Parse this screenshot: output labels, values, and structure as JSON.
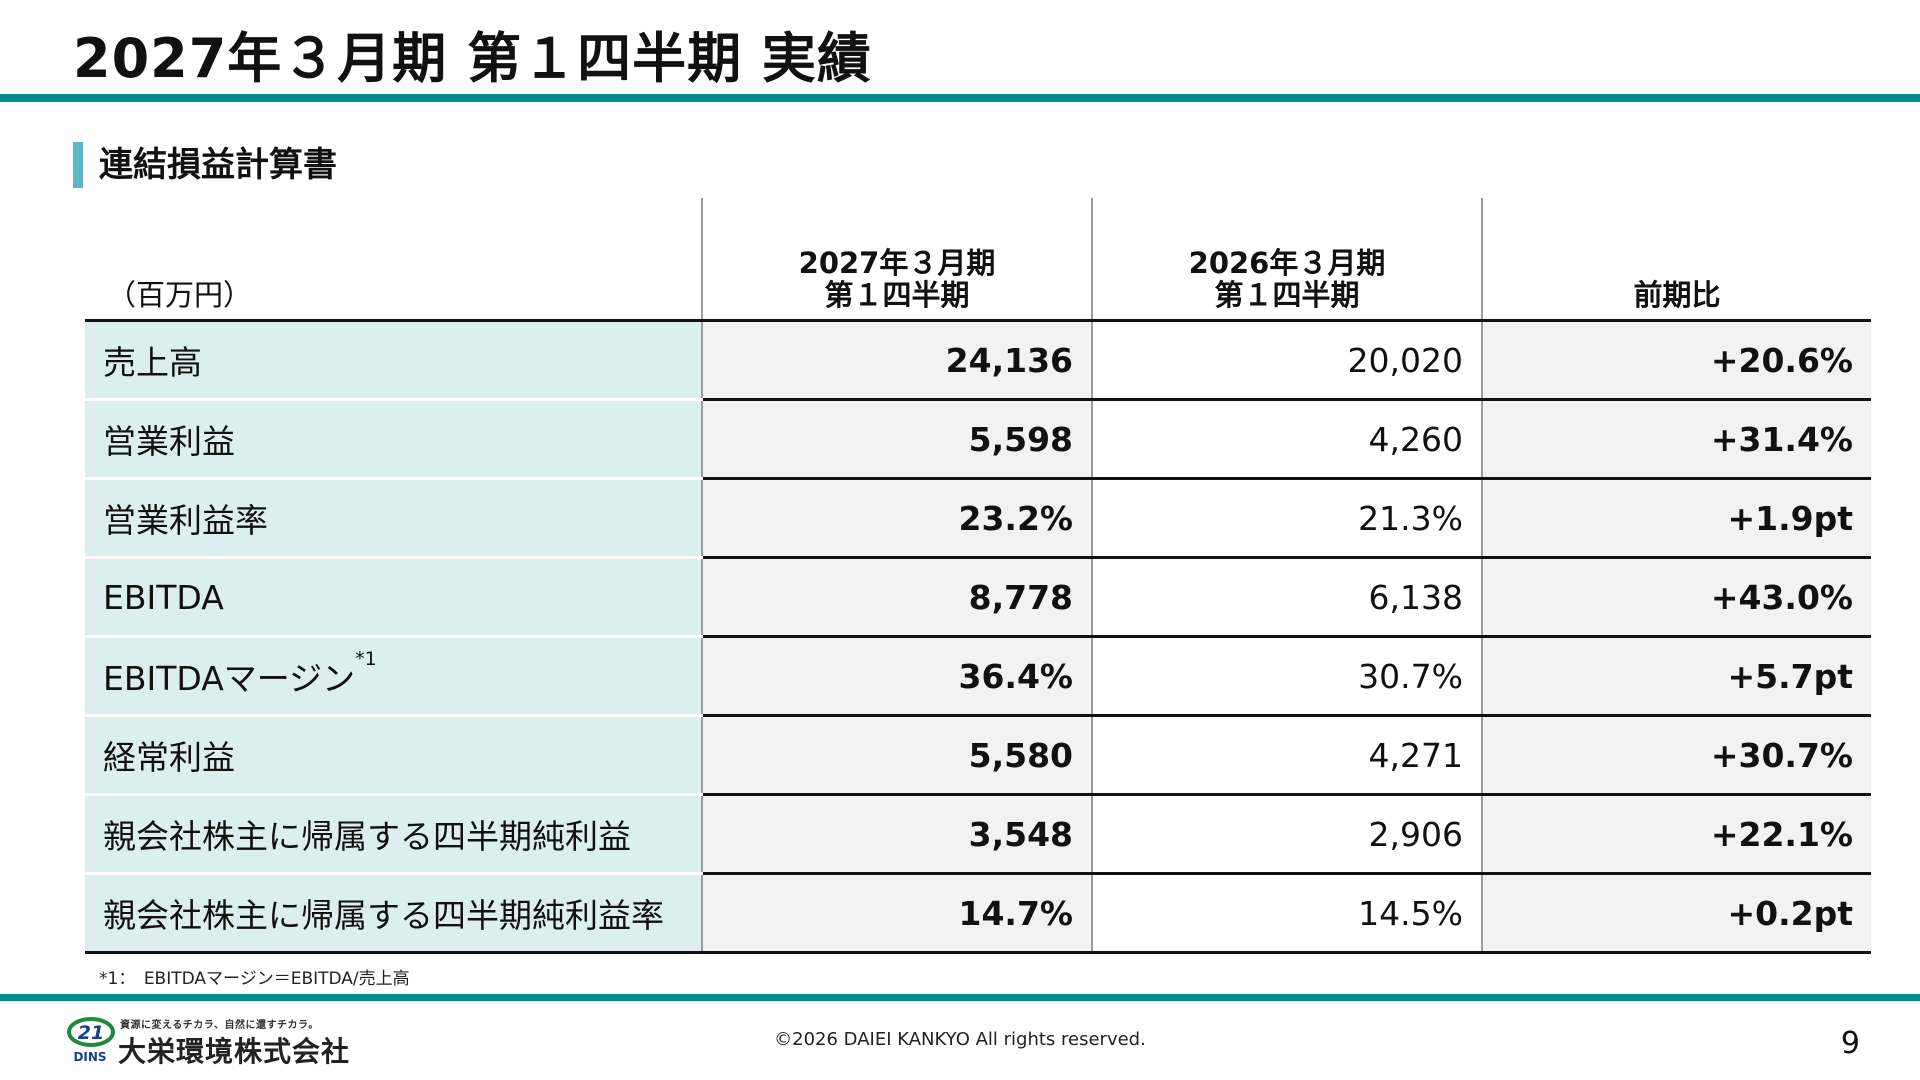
{
  "title": "2027年３月期 第１四半期 実績",
  "section_title": "連結損益計算書",
  "table": {
    "unit": "（百万円）",
    "headers": [
      {
        "line1": "2027年３月期",
        "line2": "第１四半期"
      },
      {
        "line1": "2026年３月期",
        "line2": "第１四半期"
      },
      {
        "line1": "",
        "line2": "前期比"
      }
    ],
    "rows": [
      {
        "label": "売上高",
        "note": "",
        "current": "24,136",
        "previous": "20,020",
        "change": "+20.6%"
      },
      {
        "label": "営業利益",
        "note": "",
        "current": "5,598",
        "previous": "4,260",
        "change": "+31.4%"
      },
      {
        "label": "営業利益率",
        "note": "",
        "current": "23.2%",
        "previous": "21.3%",
        "change": "+1.9pt"
      },
      {
        "label": "EBITDA",
        "note": "",
        "current": "8,778",
        "previous": "6,138",
        "change": "+43.0%"
      },
      {
        "label": "EBITDAマージン",
        "note": "*1",
        "current": "36.4%",
        "previous": "30.7%",
        "change": "+5.7pt"
      },
      {
        "label": "経常利益",
        "note": "",
        "current": "5,580",
        "previous": "4,271",
        "change": "+30.7%"
      },
      {
        "label": "親会社株主に帰属する四半期純利益",
        "note": "",
        "current": "3,548",
        "previous": "2,906",
        "change": "+22.1%"
      },
      {
        "label": "親会社株主に帰属する四半期純利益率",
        "note": "",
        "current": "14.7%",
        "previous": "14.5%",
        "change": "+0.2pt"
      }
    ]
  },
  "footnote": "*1：　EBITDAマージン＝EBITDA/売上高",
  "footer": {
    "logo_mark": "21",
    "logo_sub": "DINS",
    "tagline": "資源に変えるチカラ、自然に還すチカラ。",
    "company": "大栄環境株式会社",
    "copyright": "©2026 DAIEI KANKYO All rights reserved.",
    "page_number": "9"
  },
  "colors": {
    "accent_rule": "#008c8c",
    "section_bar": "#5bb8c4",
    "label_bg": "#ddeef1",
    "highlight_bg": "#f2f2f2"
  }
}
